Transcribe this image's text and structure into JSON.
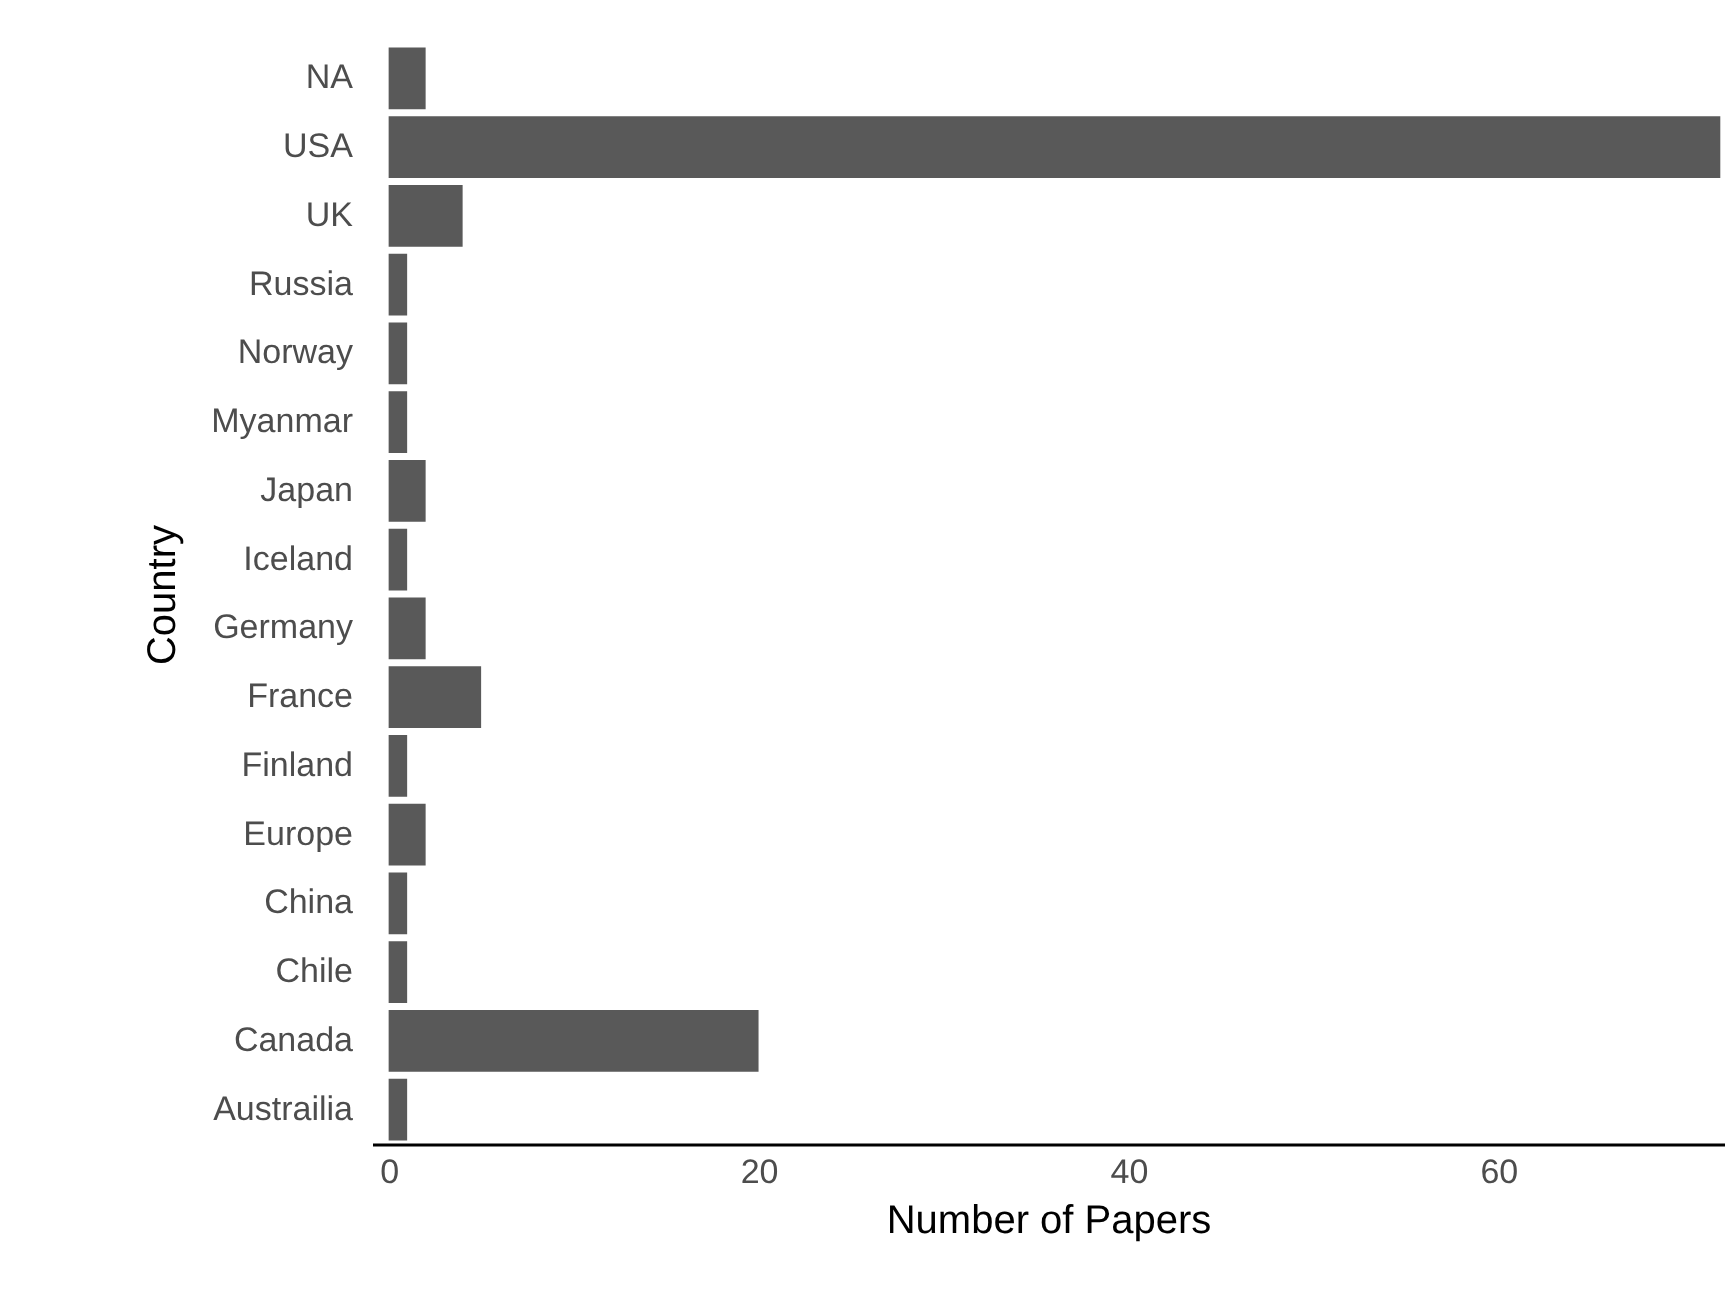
{
  "chart_data": {
    "type": "bar",
    "orientation": "horizontal",
    "xlabel": "Number of Papers",
    "ylabel": "Country",
    "categories": [
      "NA",
      "USA",
      "UK",
      "Russia",
      "Norway",
      "Myanmar",
      "Japan",
      "Iceland",
      "Germany",
      "France",
      "Finland",
      "Europe",
      "China",
      "Chile",
      "Canada",
      "Austrailia"
    ],
    "values": [
      2,
      72,
      4,
      1,
      1,
      1,
      2,
      1,
      2,
      5,
      1,
      2,
      1,
      1,
      20,
      1
    ],
    "color": "#595959",
    "xlim": [
      -0.9,
      72.2
    ],
    "xticks": [
      0,
      20,
      40,
      60
    ],
    "grid": false
  }
}
